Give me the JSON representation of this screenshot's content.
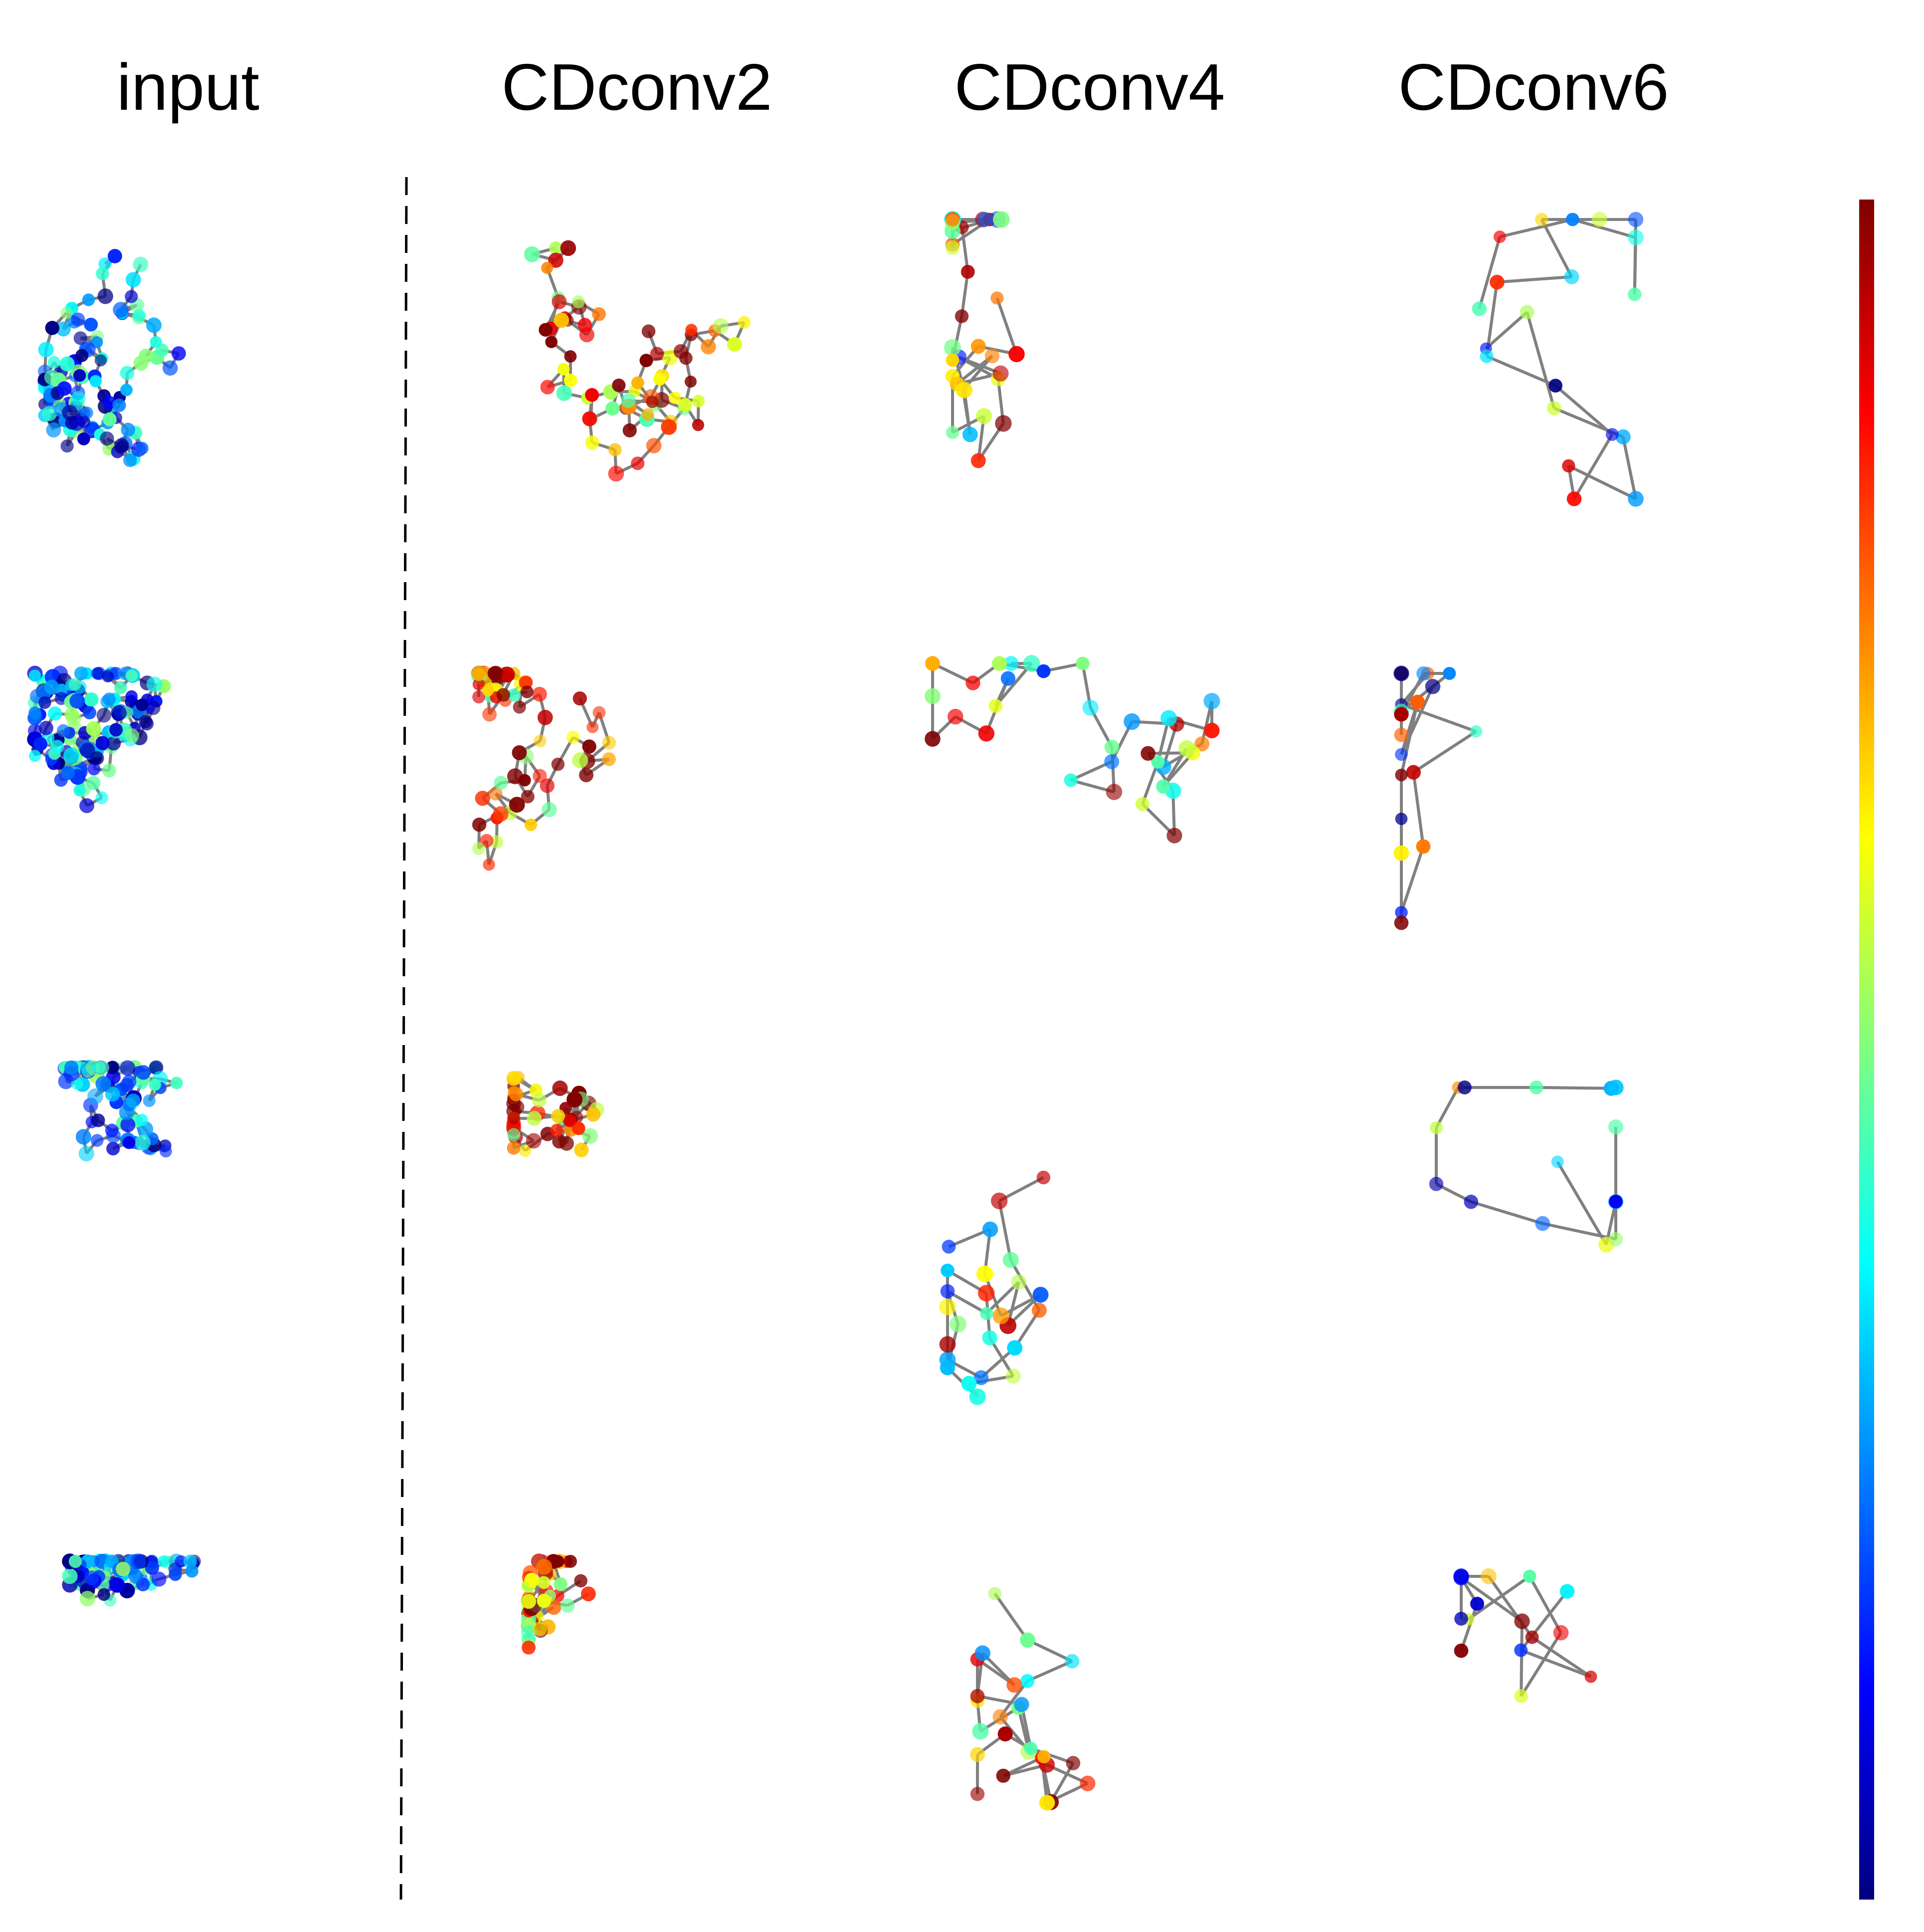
{
  "columns": [
    "input",
    "CDconv2",
    "CDconv4",
    "CDconv6"
  ],
  "colors": {
    "edge": "#808080",
    "divider": "#000000",
    "colormap_stops": [
      "#7f0000",
      "#ff0000",
      "#ff7f00",
      "#ffff00",
      "#7fff7f",
      "#00ffff",
      "#007fff",
      "#0000ff",
      "#00007f"
    ]
  },
  "colorbar": {
    "label": ""
  }
}
